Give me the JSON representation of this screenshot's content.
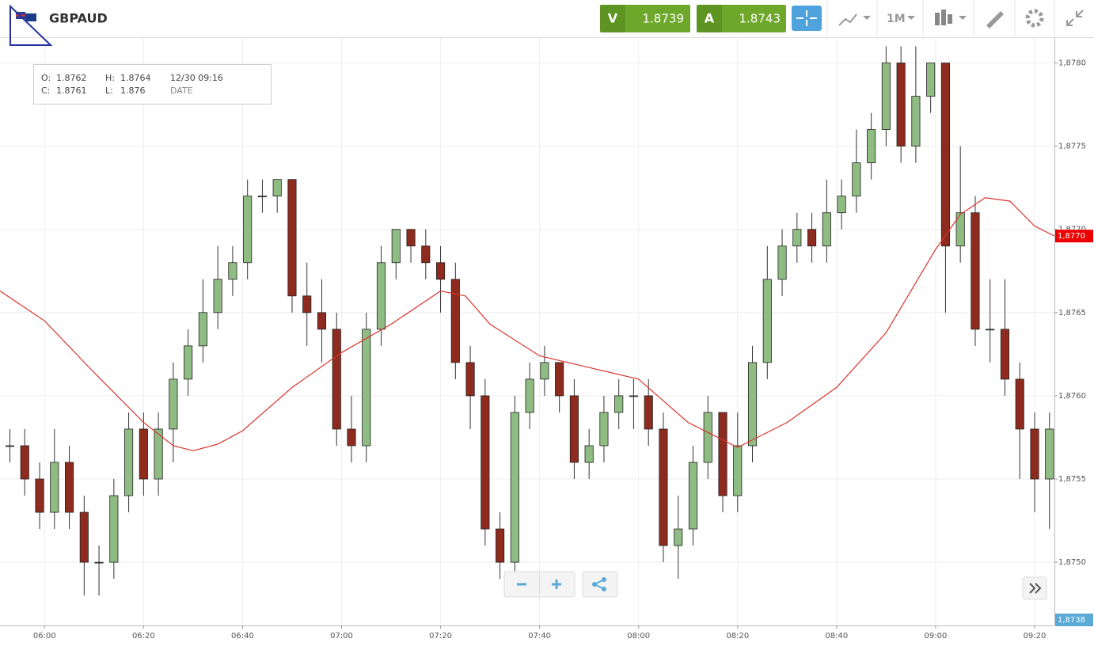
{
  "header": {
    "symbol": "GBPAUD",
    "sell_letter": "V",
    "sell_price": "1.8739",
    "buy_letter": "A",
    "buy_price": "1.8743",
    "timeframe": "1M"
  },
  "info_box": {
    "open_label": "O:",
    "open": "1.8762",
    "high_label": "H:",
    "high": "1.8764",
    "date": "12/30 09:16",
    "close_label": "C:",
    "close": "1.8761",
    "low_label": "L:",
    "low": "1.876",
    "date_label": "DATE"
  },
  "chart_data": {
    "type": "candlestick",
    "x": [
      "05:53",
      "05:56",
      "05:59",
      "06:02",
      "06:05",
      "06:08",
      "06:11",
      "06:14",
      "06:17",
      "06:20",
      "06:23",
      "06:26",
      "06:29",
      "06:32",
      "06:35",
      "06:38",
      "06:41",
      "06:44",
      "06:47",
      "06:50",
      "06:53",
      "06:56",
      "06:59",
      "07:02",
      "07:05",
      "07:08",
      "07:11",
      "07:14",
      "07:17",
      "07:20",
      "07:23",
      "07:26",
      "07:29",
      "07:32",
      "07:35",
      "07:38",
      "07:41",
      "07:44",
      "07:47",
      "07:50",
      "07:53",
      "07:56",
      "07:59",
      "08:02",
      "08:05",
      "08:08",
      "08:11",
      "08:14",
      "08:17",
      "08:20",
      "08:23",
      "08:26",
      "08:29",
      "08:32",
      "08:35",
      "08:38",
      "08:41",
      "08:44",
      "08:47",
      "08:50",
      "08:53",
      "08:56",
      "08:59",
      "09:02",
      "09:05",
      "09:08",
      "09:11",
      "09:14",
      "09:17",
      "09:20",
      "09:23"
    ],
    "open": [
      1.8757,
      1.8757,
      1.8755,
      1.8753,
      1.8756,
      1.8753,
      1.875,
      1.875,
      1.8754,
      1.8758,
      1.8755,
      1.8758,
      1.8761,
      1.8763,
      1.8765,
      1.8767,
      1.8768,
      1.8772,
      1.8772,
      1.8773,
      1.8766,
      1.8765,
      1.8764,
      1.8758,
      1.8757,
      1.8764,
      1.8768,
      1.877,
      1.8769,
      1.8768,
      1.8767,
      1.8762,
      1.876,
      1.8752,
      1.875,
      1.8759,
      1.8761,
      1.8762,
      1.876,
      1.8756,
      1.8757,
      1.8759,
      1.876,
      1.876,
      1.8758,
      1.8751,
      1.8752,
      1.8756,
      1.8759,
      1.8754,
      1.8757,
      1.8762,
      1.8767,
      1.8769,
      1.877,
      1.8769,
      1.8771,
      1.8772,
      1.8774,
      1.8776,
      1.878,
      1.8775,
      1.8778,
      1.878,
      1.8769,
      1.8771,
      1.8764,
      1.8764,
      1.8761,
      1.8758,
      1.8755
    ],
    "high": [
      1.8758,
      1.8758,
      1.8756,
      1.8758,
      1.8757,
      1.8754,
      1.8751,
      1.8755,
      1.8759,
      1.8759,
      1.8759,
      1.8762,
      1.8764,
      1.8767,
      1.8769,
      1.8769,
      1.8773,
      1.8773,
      1.8773,
      1.8773,
      1.8768,
      1.8767,
      1.8765,
      1.876,
      1.8765,
      1.8769,
      1.877,
      1.877,
      1.877,
      1.8769,
      1.8768,
      1.8763,
      1.8761,
      1.8753,
      1.876,
      1.8762,
      1.8763,
      1.8762,
      1.8761,
      1.8758,
      1.876,
      1.8761,
      1.8761,
      1.8761,
      1.8759,
      1.8754,
      1.8757,
      1.876,
      1.8759,
      1.8759,
      1.8763,
      1.8769,
      1.877,
      1.8771,
      1.8771,
      1.8773,
      1.8773,
      1.8776,
      1.8777,
      1.8781,
      1.8781,
      1.8781,
      1.878,
      1.878,
      1.8775,
      1.8772,
      1.8767,
      1.8767,
      1.8762,
      1.8759,
      1.8759
    ],
    "low": [
      1.8756,
      1.8754,
      1.8752,
      1.8752,
      1.8752,
      1.8748,
      1.8748,
      1.8749,
      1.8753,
      1.8754,
      1.8754,
      1.8756,
      1.876,
      1.8762,
      1.8764,
      1.8766,
      1.8767,
      1.8771,
      1.8771,
      1.8765,
      1.8763,
      1.8762,
      1.8757,
      1.8756,
      1.8756,
      1.8763,
      1.8767,
      1.8768,
      1.8767,
      1.8765,
      1.8761,
      1.8758,
      1.8751,
      1.8749,
      1.8749,
      1.8758,
      1.876,
      1.8759,
      1.8755,
      1.8755,
      1.8756,
      1.8758,
      1.8758,
      1.8757,
      1.875,
      1.8749,
      1.8751,
      1.8755,
      1.8753,
      1.8753,
      1.8756,
      1.8761,
      1.8766,
      1.8768,
      1.8768,
      1.8768,
      1.877,
      1.8771,
      1.8773,
      1.8775,
      1.8774,
      1.8774,
      1.8777,
      1.8765,
      1.8768,
      1.8763,
      1.8762,
      1.876,
      1.8755,
      1.8753,
      1.8752
    ],
    "close": [
      1.8757,
      1.8755,
      1.8753,
      1.8756,
      1.8753,
      1.875,
      1.875,
      1.8754,
      1.8758,
      1.8755,
      1.8758,
      1.8761,
      1.8763,
      1.8765,
      1.8767,
      1.8768,
      1.8772,
      1.8772,
      1.8773,
      1.8766,
      1.8765,
      1.8764,
      1.8758,
      1.8757,
      1.8764,
      1.8768,
      1.877,
      1.8769,
      1.8768,
      1.8767,
      1.8762,
      1.876,
      1.8752,
      1.875,
      1.8759,
      1.8761,
      1.8762,
      1.876,
      1.8756,
      1.8757,
      1.8759,
      1.876,
      1.876,
      1.8758,
      1.8751,
      1.8752,
      1.8756,
      1.8759,
      1.8754,
      1.8757,
      1.8762,
      1.8767,
      1.8769,
      1.877,
      1.8769,
      1.8771,
      1.8772,
      1.8774,
      1.8776,
      1.878,
      1.8775,
      1.8778,
      1.878,
      1.8769,
      1.8771,
      1.8764,
      1.8764,
      1.8761,
      1.8758,
      1.8755,
      1.8758
    ],
    "up_color": "#8fbc82",
    "down_color": "#8e2b1e",
    "moving_average": {
      "color": "#d9332b",
      "x": [
        "05:51",
        "06:00",
        "06:10",
        "06:20",
        "06:26",
        "06:30",
        "06:35",
        "06:40",
        "06:50",
        "07:00",
        "07:10",
        "07:20",
        "07:25",
        "07:30",
        "07:40",
        "07:50",
        "08:00",
        "08:10",
        "08:20",
        "08:30",
        "08:40",
        "08:50",
        "09:00",
        "09:05",
        "09:10",
        "09:15",
        "09:20",
        "09:24"
      ],
      "values": [
        1.87663,
        1.87645,
        1.87614,
        1.87584,
        1.8757,
        1.87567,
        1.87571,
        1.87579,
        1.87605,
        1.87626,
        1.87643,
        1.87663,
        1.8766,
        1.87643,
        1.87624,
        1.87617,
        1.8761,
        1.87584,
        1.87569,
        1.87584,
        1.87605,
        1.87638,
        1.87688,
        1.87709,
        1.87719,
        1.87717,
        1.87702,
        1.87696
      ]
    },
    "xlim": [
      "05:51",
      "09:24"
    ],
    "xticks": [
      "06:00",
      "06:20",
      "06:40",
      "07:00",
      "07:20",
      "07:40",
      "08:00",
      "08:20",
      "08:40",
      "09:00",
      "09:20"
    ],
    "ylim": [
      1.87462,
      1.87815
    ],
    "yticks": [
      {
        "value": 1.875,
        "label": "1,8750"
      },
      {
        "value": 1.8755,
        "label": "1,8755"
      },
      {
        "value": 1.876,
        "label": "1,8760"
      },
      {
        "value": 1.8765,
        "label": "1,8765"
      },
      {
        "value": 1.877,
        "label": "1,8770"
      },
      {
        "value": 1.8775,
        "label": "1,8775"
      },
      {
        "value": 1.878,
        "label": "1,8780"
      }
    ],
    "grid": true,
    "price_marker": {
      "value": 1.87696,
      "label": "1,8770",
      "color": "#ee0000"
    },
    "bid_marker": {
      "label": "1,8738",
      "color": "#5aa9d6"
    }
  }
}
